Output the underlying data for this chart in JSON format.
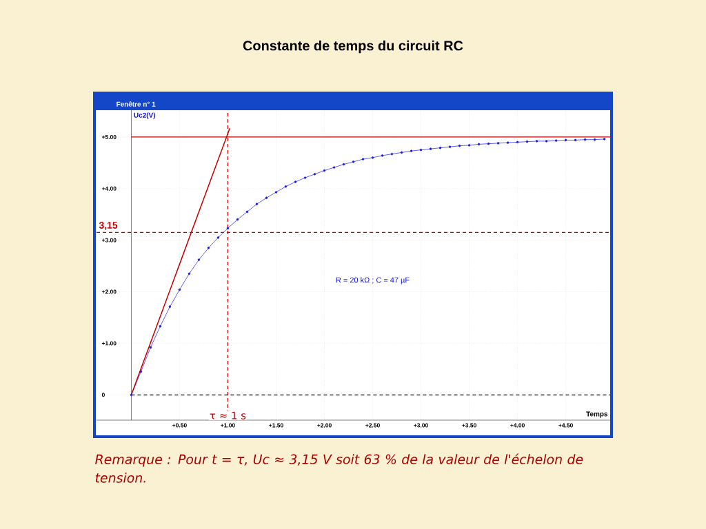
{
  "chart_data": {
    "type": "line",
    "title": "Constante de temps du circuit RC",
    "xlabel": "Temps",
    "ylabel": "Uc2(V)",
    "annotations": [
      "Fenêtre n° 1",
      "R = 20 kΩ ; C = 47 µF",
      "*Remarque : Pour t = τ, Uc ≈ 3,15 V soit 63 % de la valeur de l'échelon de tension.*"
    ],
    "xlim": [
      -0.36,
      4.96
    ],
    "ylim": [
      -0.49,
      5.52
    ],
    "xticks": [
      {
        "value": 0.5,
        "label": "+0.50"
      },
      {
        "value": 1,
        "label": "+1.00"
      },
      {
        "value": 1.5,
        "label": "+1.50"
      },
      {
        "value": 2,
        "label": "+2.00"
      },
      {
        "value": 2.5,
        "label": "+2.50"
      },
      {
        "value": 3,
        "label": "+3.00"
      },
      {
        "value": 3.5,
        "label": "+3.50"
      },
      {
        "value": 4,
        "label": "+4.00"
      },
      {
        "value": 4.5,
        "label": "+4.50"
      }
    ],
    "yticks": [
      {
        "value": 0,
        "label": "0"
      },
      {
        "value": 1,
        "label": "+1.00"
      },
      {
        "value": 2,
        "label": "+2.00"
      },
      {
        "value": 3,
        "label": "+3.00"
      },
      {
        "value": 4,
        "label": "+4.00"
      },
      {
        "value": 5,
        "label": "+5.00"
      }
    ],
    "grid": true,
    "marker": "circle",
    "line_style": "solid",
    "series": [
      {
        "color": "#1a1aee",
        "x": [
          0,
          0.1,
          0.2,
          0.3,
          0.4,
          0.5,
          0.6,
          0.7,
          0.8,
          0.9,
          1.0,
          1.1,
          1.2,
          1.3,
          1.4,
          1.5,
          1.6,
          1.7,
          1.8,
          1.9,
          2.0,
          2.1,
          2.2,
          2.3,
          2.4,
          2.5,
          2.6,
          2.7,
          2.8,
          2.9,
          3.0,
          3.1,
          3.2,
          3.3,
          3.4,
          3.5,
          3.6,
          3.7,
          3.8,
          3.9,
          4.0,
          4.1,
          4.2,
          4.3,
          4.4,
          4.5,
          4.6,
          4.7,
          4.8,
          4.9
        ],
        "values": [
          0,
          0.45,
          0.92,
          1.33,
          1.71,
          2.04,
          2.35,
          2.62,
          2.85,
          3.05,
          3.23,
          3.4,
          3.55,
          3.7,
          3.82,
          3.93,
          4.04,
          4.13,
          4.21,
          4.28,
          4.35,
          4.41,
          4.47,
          4.52,
          4.57,
          4.6,
          4.64,
          4.67,
          4.7,
          4.73,
          4.75,
          4.77,
          4.79,
          4.81,
          4.83,
          4.84,
          4.86,
          4.87,
          4.88,
          4.89,
          4.9,
          4.91,
          4.92,
          4.92,
          4.93,
          4.94,
          4.94,
          4.95,
          4.95,
          4.96
        ]
      },
      {
        "type": "line",
        "color": "#c00000",
        "marker": "none",
        "x": [
          0,
          1.02
        ],
        "values": [
          0,
          5.17
        ]
      }
    ],
    "ref_lines": [
      {
        "axis": "y",
        "value": 5,
        "color": "#c00000",
        "line_style": "solid"
      },
      {
        "axis": "y",
        "value": 3.15,
        "label": "3,15",
        "color": "#c00000",
        "line_style": "dashed"
      },
      {
        "axis": "x",
        "value": 1,
        "label": "τ ≈ 1 s",
        "color": "#c00000",
        "line_style": "dashed"
      },
      {
        "axis": "y",
        "value": 0,
        "color": "#000000",
        "line_style": "dashed"
      }
    ]
  }
}
